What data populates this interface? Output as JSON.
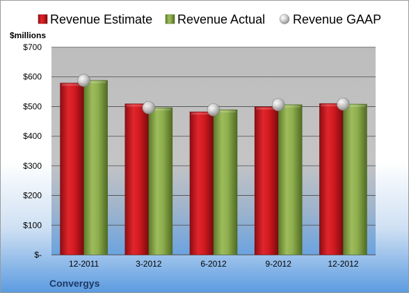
{
  "chart_data": {
    "type": "bar",
    "unit_label": "$millions",
    "company": "Convergys",
    "categories": [
      "12-2011",
      "3-2012",
      "6-2012",
      "9-2012",
      "12-2012"
    ],
    "series": [
      {
        "name": "Revenue Estimate",
        "kind": "bar",
        "color": "#c8161d",
        "values": [
          579,
          509,
          482,
          499,
          510
        ]
      },
      {
        "name": "Revenue Actual",
        "kind": "bar",
        "color": "#8aaa4a",
        "values": [
          588,
          496,
          489,
          506,
          508
        ]
      },
      {
        "name": "Revenue GAAP",
        "kind": "marker",
        "color": "#b8b8b8",
        "values": [
          588,
          496,
          489,
          506,
          508
        ]
      }
    ],
    "ylim": [
      0,
      700
    ],
    "yticks": [
      0,
      100,
      200,
      300,
      400,
      500,
      600,
      700
    ],
    "ytick_labels": [
      "$-",
      "$100",
      "$200",
      "$300",
      "$400",
      "$500",
      "$600",
      "$700"
    ],
    "grid": true,
    "legend_position": "top"
  }
}
